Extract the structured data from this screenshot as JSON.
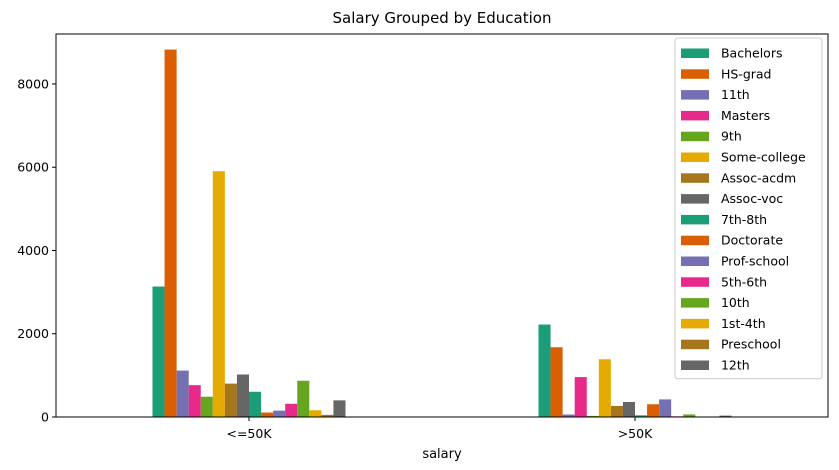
{
  "chart_data": {
    "type": "bar",
    "title": "Salary Grouped by Education",
    "xlabel": "salary",
    "ylabel": "",
    "categories": [
      "<=50K",
      ">50K"
    ],
    "ylim": [
      0,
      9200
    ],
    "yticks": [
      0,
      2000,
      4000,
      6000,
      8000
    ],
    "legend_position": "top-right",
    "grid": false,
    "series": [
      {
        "name": " Bachelors",
        "values": [
          3134,
          2221
        ],
        "color": "#1b9e77"
      },
      {
        "name": " HS-grad",
        "values": [
          8826,
          1675
        ],
        "color": "#d95f02"
      },
      {
        "name": " 11th",
        "values": [
          1115,
          60
        ],
        "color": "#7570b3"
      },
      {
        "name": " Masters",
        "values": [
          764,
          959
        ],
        "color": "#e7298a"
      },
      {
        "name": " 9th",
        "values": [
          487,
          27
        ],
        "color": "#66a61e"
      },
      {
        "name": " Some-college",
        "values": [
          5904,
          1387
        ],
        "color": "#e6ab02"
      },
      {
        "name": " Assoc-acdm",
        "values": [
          802,
          265
        ],
        "color": "#a6761d"
      },
      {
        "name": " Assoc-voc",
        "values": [
          1021,
          361
        ],
        "color": "#666666"
      },
      {
        "name": " 7th-8th",
        "values": [
          606,
          40
        ],
        "color": "#1b9e77"
      },
      {
        "name": " Doctorate",
        "values": [
          107,
          306
        ],
        "color": "#d95f02"
      },
      {
        "name": " Prof-school",
        "values": [
          153,
          423
        ],
        "color": "#7570b3"
      },
      {
        "name": " 5th-6th",
        "values": [
          317,
          16
        ],
        "color": "#e7298a"
      },
      {
        "name": " 10th",
        "values": [
          871,
          62
        ],
        "color": "#66a61e"
      },
      {
        "name": " 1st-4th",
        "values": [
          162,
          6
        ],
        "color": "#e6ab02"
      },
      {
        "name": " Preschool",
        "values": [
          51,
          0
        ],
        "color": "#a6761d"
      },
      {
        "name": " 12th",
        "values": [
          400,
          33
        ],
        "color": "#666666"
      }
    ]
  }
}
